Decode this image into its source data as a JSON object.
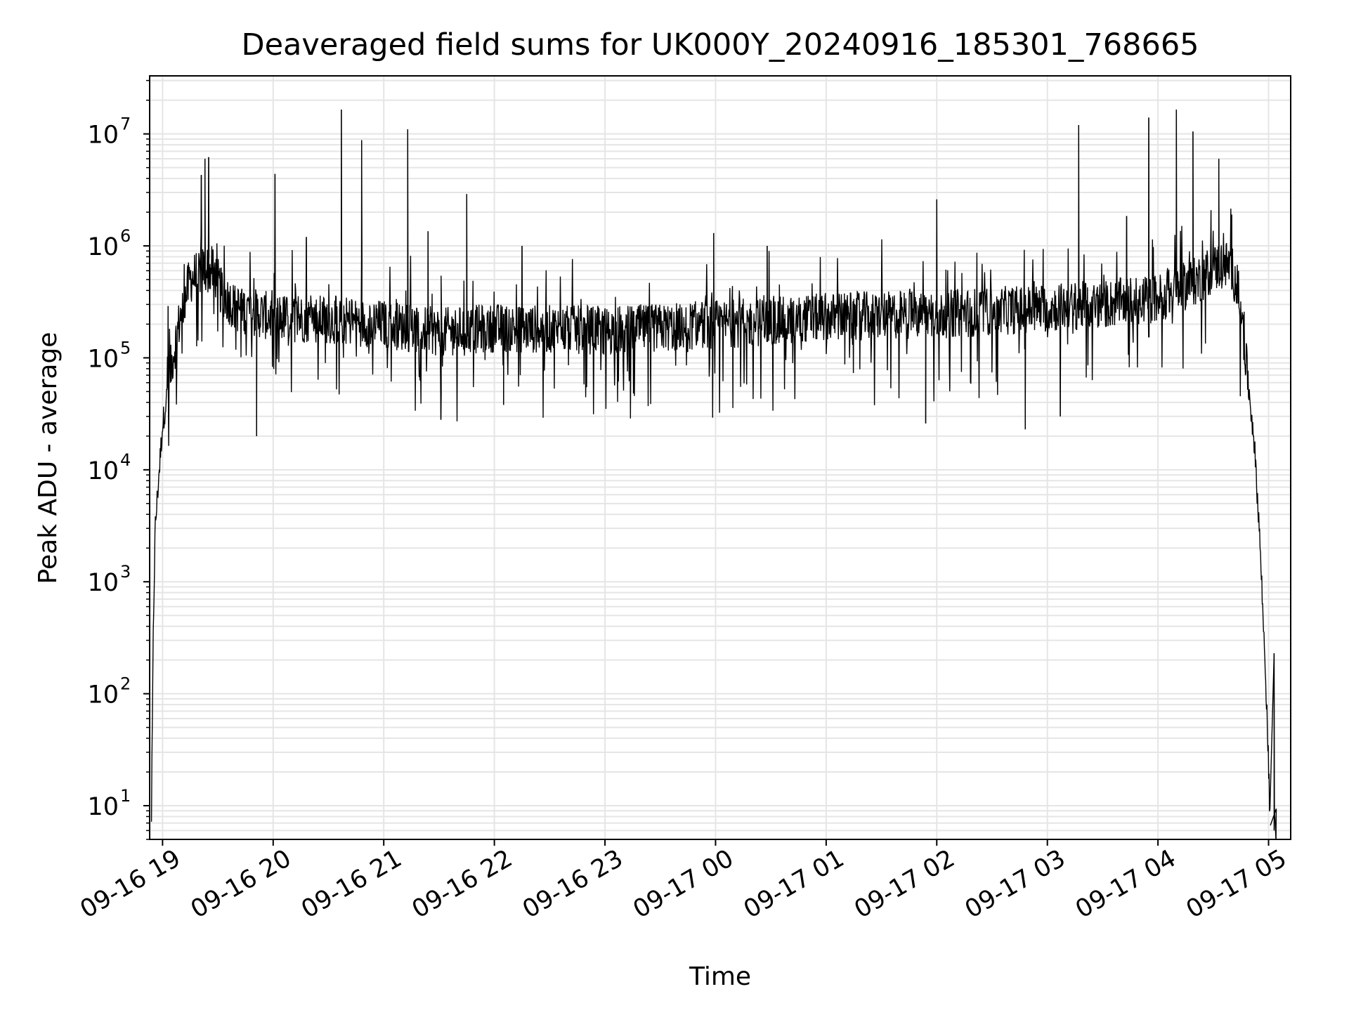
{
  "chart_data": {
    "type": "line",
    "title": "Deaveraged field sums for UK000Y_20240916_185301_768665",
    "xlabel": "Time",
    "ylabel": "Peak ADU - average",
    "yscale": "log",
    "ylim": [
      5,
      33000000
    ],
    "xlim": [
      "2024-09-16 18:53",
      "2024-09-17 05:12"
    ],
    "grid": true,
    "grid_minor": true,
    "colors": {
      "line": "#000000",
      "grid": "#e5e5e5",
      "background": "#ffffff"
    },
    "x_ticks": [
      {
        "label": "09-16 19",
        "value": "2024-09-16 19:00"
      },
      {
        "label": "09-16 20",
        "value": "2024-09-16 20:00"
      },
      {
        "label": "09-16 21",
        "value": "2024-09-16 21:00"
      },
      {
        "label": "09-16 22",
        "value": "2024-09-16 22:00"
      },
      {
        "label": "09-16 23",
        "value": "2024-09-16 23:00"
      },
      {
        "label": "09-17 00",
        "value": "2024-09-17 00:00"
      },
      {
        "label": "09-17 01",
        "value": "2024-09-17 01:00"
      },
      {
        "label": "09-17 02",
        "value": "2024-09-17 02:00"
      },
      {
        "label": "09-17 03",
        "value": "2024-09-17 03:00"
      },
      {
        "label": "09-17 04",
        "value": "2024-09-17 04:00"
      },
      {
        "label": "09-17 05",
        "value": "2024-09-17 05:00"
      }
    ],
    "y_ticks": [
      {
        "base": "10",
        "exp": "1",
        "value": 10
      },
      {
        "base": "10",
        "exp": "2",
        "value": 100
      },
      {
        "base": "10",
        "exp": "3",
        "value": 1000
      },
      {
        "base": "10",
        "exp": "4",
        "value": 10000
      },
      {
        "base": "10",
        "exp": "5",
        "value": 100000
      },
      {
        "base": "10",
        "exp": "6",
        "value": 1000000
      },
      {
        "base": "10",
        "exp": "7",
        "value": 10000000
      }
    ],
    "series": [
      {
        "baseline": [
          {
            "x": "2024-09-16 18:54",
            "y": 8
          },
          {
            "x": "2024-09-16 18:55",
            "y": 400
          },
          {
            "x": "2024-09-16 18:56",
            "y": 3000
          },
          {
            "x": "2024-09-16 18:58",
            "y": 9000
          },
          {
            "x": "2024-09-16 19:00",
            "y": 25000
          },
          {
            "x": "2024-09-16 19:05",
            "y": 90000
          },
          {
            "x": "2024-09-16 19:10",
            "y": 250000
          },
          {
            "x": "2024-09-16 19:15",
            "y": 500000
          },
          {
            "x": "2024-09-16 19:22",
            "y": 620000
          },
          {
            "x": "2024-09-16 19:28",
            "y": 600000
          },
          {
            "x": "2024-09-16 19:32",
            "y": 380000
          },
          {
            "x": "2024-09-16 19:40",
            "y": 280000
          },
          {
            "x": "2024-09-16 20:00",
            "y": 230000
          },
          {
            "x": "2024-09-16 20:30",
            "y": 220000
          },
          {
            "x": "2024-09-16 21:00",
            "y": 200000
          },
          {
            "x": "2024-09-16 21:30",
            "y": 170000
          },
          {
            "x": "2024-09-16 22:00",
            "y": 185000
          },
          {
            "x": "2024-09-16 22:30",
            "y": 180000
          },
          {
            "x": "2024-09-16 23:00",
            "y": 175000
          },
          {
            "x": "2024-09-16 23:30",
            "y": 185000
          },
          {
            "x": "2024-09-17 00:00",
            "y": 200000
          },
          {
            "x": "2024-09-17 00:30",
            "y": 210000
          },
          {
            "x": "2024-09-17 01:00",
            "y": 230000
          },
          {
            "x": "2024-09-17 01:30",
            "y": 240000
          },
          {
            "x": "2024-09-17 02:00",
            "y": 245000
          },
          {
            "x": "2024-09-17 02:30",
            "y": 260000
          },
          {
            "x": "2024-09-17 03:00",
            "y": 280000
          },
          {
            "x": "2024-09-17 03:30",
            "y": 300000
          },
          {
            "x": "2024-09-17 04:00",
            "y": 340000
          },
          {
            "x": "2024-09-17 04:20",
            "y": 480000
          },
          {
            "x": "2024-09-17 04:35",
            "y": 700000
          },
          {
            "x": "2024-09-17 04:40",
            "y": 650000
          },
          {
            "x": "2024-09-17 04:45",
            "y": 300000
          },
          {
            "x": "2024-09-17 04:48",
            "y": 80000
          },
          {
            "x": "2024-09-17 04:52",
            "y": 20000
          },
          {
            "x": "2024-09-17 04:55",
            "y": 3000
          },
          {
            "x": "2024-09-17 04:57",
            "y": 500
          },
          {
            "x": "2024-09-17 04:59",
            "y": 80
          },
          {
            "x": "2024-09-17 05:01",
            "y": 6
          }
        ],
        "spikes": [
          {
            "x": "2024-09-16 19:03",
            "y": 290000
          },
          {
            "x": "2024-09-16 19:21",
            "y": 4300000
          },
          {
            "x": "2024-09-16 19:23",
            "y": 6000000
          },
          {
            "x": "2024-09-16 19:25",
            "y": 6200000
          },
          {
            "x": "2024-09-16 20:01",
            "y": 4400000
          },
          {
            "x": "2024-09-16 20:18",
            "y": 1200000
          },
          {
            "x": "2024-09-16 20:37",
            "y": 16500000
          },
          {
            "x": "2024-09-16 20:48",
            "y": 8800000
          },
          {
            "x": "2024-09-16 21:13",
            "y": 11000000
          },
          {
            "x": "2024-09-16 21:24",
            "y": 1350000
          },
          {
            "x": "2024-09-16 21:45",
            "y": 2900000
          },
          {
            "x": "2024-09-16 22:15",
            "y": 1000000
          },
          {
            "x": "2024-09-16 23:59",
            "y": 1300000
          },
          {
            "x": "2024-09-17 00:28",
            "y": 1000000
          },
          {
            "x": "2024-09-17 02:00",
            "y": 2600000
          },
          {
            "x": "2024-09-17 03:17",
            "y": 12000000
          },
          {
            "x": "2024-09-17 03:43",
            "y": 1850000
          },
          {
            "x": "2024-09-17 03:55",
            "y": 14000000
          },
          {
            "x": "2024-09-17 04:10",
            "y": 16500000
          },
          {
            "x": "2024-09-17 04:19",
            "y": 10500000
          },
          {
            "x": "2024-09-17 04:33",
            "y": 6000000
          },
          {
            "x": "2024-09-17 04:40",
            "y": 1900000
          }
        ],
        "dips": [
          {
            "x": "2024-09-16 19:51",
            "y": 20000
          },
          {
            "x": "2024-09-16 21:31",
            "y": 28000
          },
          {
            "x": "2024-09-16 22:05",
            "y": 38000
          },
          {
            "x": "2024-09-17 02:48",
            "y": 23000
          },
          {
            "x": "2024-09-17 03:07",
            "y": 30000
          },
          {
            "x": "2024-09-17 01:54",
            "y": 26000
          },
          {
            "x": "2024-09-17 05:03",
            "y": 230
          },
          {
            "x": "2024-09-17 05:04",
            "y": 5
          }
        ]
      }
    ]
  }
}
